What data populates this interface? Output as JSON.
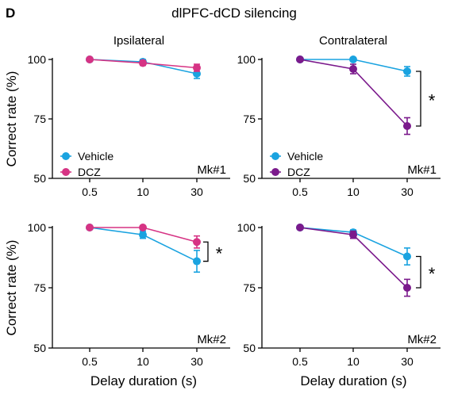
{
  "panel_letter": "D",
  "figure_title": "dlPFC-dCD silencing",
  "columns": [
    "Ipsilateral",
    "Contralateral"
  ],
  "colors": {
    "vehicle": "#1aa3e0",
    "dcz_ipsilateral": "#d63384",
    "dcz_contralateral": "#7b1a8c",
    "axis": "#000000"
  },
  "chart_data": [
    {
      "type": "line",
      "column": "Ipsilateral",
      "monkey": "Mk#1",
      "categories": [
        "0.5",
        "10",
        "30"
      ],
      "ylabel": "Correct rate (%)",
      "xlabel": "",
      "ylim": [
        50,
        100
      ],
      "yticks": [
        "50",
        "75",
        "100"
      ],
      "legend": "bottom-left",
      "series": [
        {
          "name": "Vehicle",
          "values": [
            100,
            99,
            94
          ],
          "err": [
            0.5,
            1,
            2
          ],
          "color": "#1aa3e0"
        },
        {
          "name": "DCZ",
          "values": [
            100,
            98.5,
            96.5
          ],
          "err": [
            0.5,
            1,
            1.5
          ],
          "color": "#d63384"
        }
      ],
      "significance": ""
    },
    {
      "type": "line",
      "column": "Contralateral",
      "monkey": "Mk#1",
      "categories": [
        "0.5",
        "10",
        "30"
      ],
      "ylabel": "",
      "xlabel": "",
      "ylim": [
        50,
        100
      ],
      "yticks": [
        "50",
        "75",
        "100"
      ],
      "legend": "bottom-left",
      "series": [
        {
          "name": "Vehicle",
          "values": [
            100,
            100,
            95
          ],
          "err": [
            0.5,
            0.5,
            2
          ],
          "color": "#1aa3e0"
        },
        {
          "name": "DCZ",
          "values": [
            100,
            96,
            72
          ],
          "err": [
            0.5,
            2,
            3.5
          ],
          "color": "#7b1a8c"
        }
      ],
      "significance": "*"
    },
    {
      "type": "line",
      "column": "Ipsilateral",
      "monkey": "Mk#2",
      "categories": [
        "0.5",
        "10",
        "30"
      ],
      "ylabel": "Correct rate (%)",
      "xlabel": "Delay duration (s)",
      "ylim": [
        50,
        100
      ],
      "yticks": [
        "50",
        "75",
        "100"
      ],
      "series": [
        {
          "name": "Vehicle",
          "values": [
            100,
            97,
            86
          ],
          "err": [
            0.5,
            1.5,
            4.5
          ],
          "color": "#1aa3e0"
        },
        {
          "name": "DCZ",
          "values": [
            100,
            100,
            94
          ],
          "err": [
            0.5,
            0.5,
            2.5
          ],
          "color": "#d63384"
        }
      ],
      "significance": "*"
    },
    {
      "type": "line",
      "column": "Contralateral",
      "monkey": "Mk#2",
      "categories": [
        "0.5",
        "10",
        "30"
      ],
      "ylabel": "",
      "xlabel": "Delay duration (s)",
      "ylim": [
        50,
        100
      ],
      "yticks": [
        "50",
        "75",
        "100"
      ],
      "series": [
        {
          "name": "Vehicle",
          "values": [
            100,
            98,
            88
          ],
          "err": [
            0.5,
            1,
            3.5
          ],
          "color": "#1aa3e0"
        },
        {
          "name": "DCZ",
          "values": [
            100,
            97,
            75
          ],
          "err": [
            0.5,
            1.5,
            3.5
          ],
          "color": "#7b1a8c"
        }
      ],
      "significance": "*"
    }
  ]
}
